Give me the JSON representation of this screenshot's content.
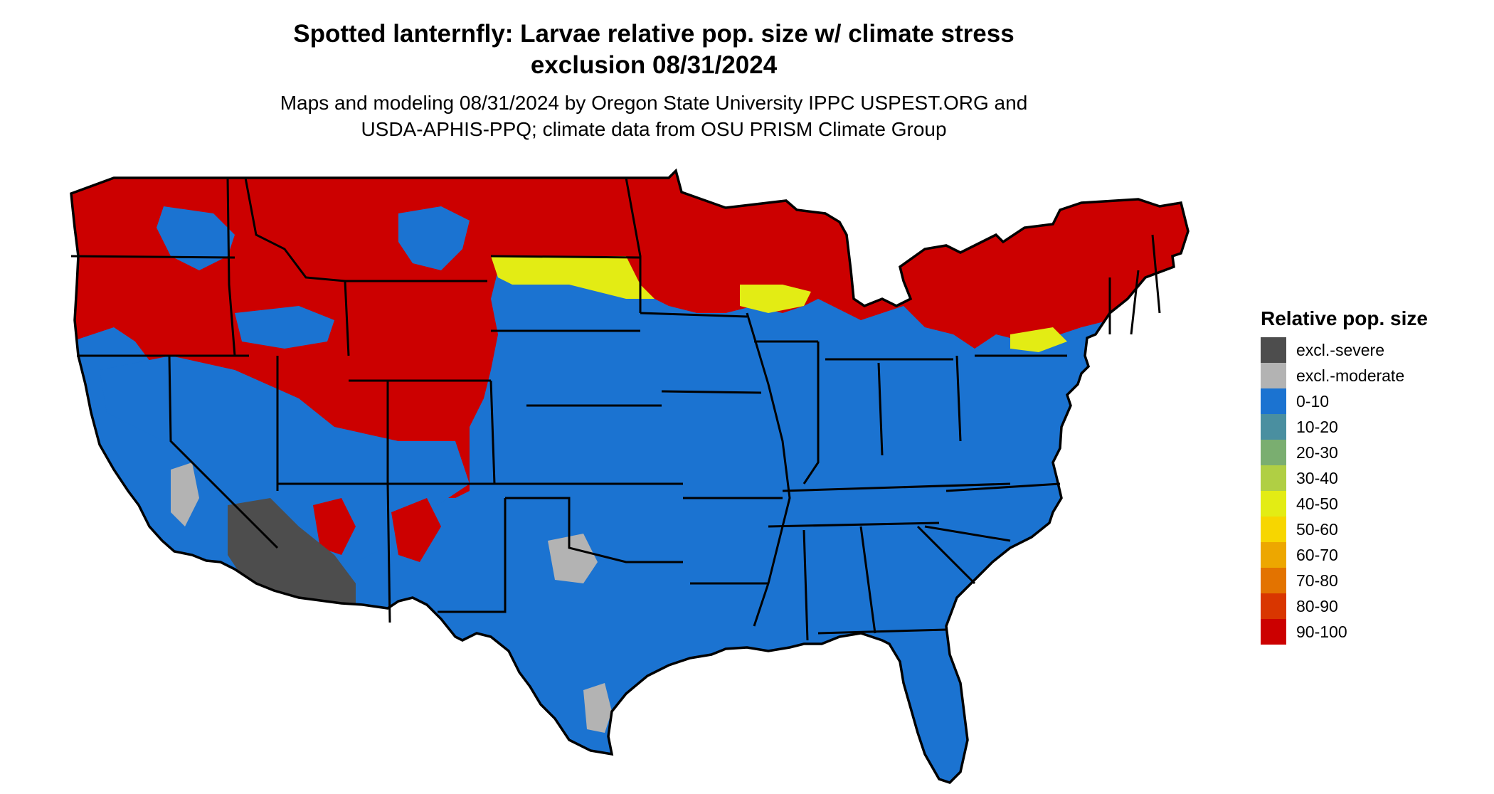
{
  "header": {
    "title_line1": "Spotted lanternfly: Larvae relative pop. size w/ climate stress",
    "title_line2": "exclusion 08/31/2024",
    "subtitle_line1": "Maps and modeling 08/31/2024 by Oregon State University IPPC USPEST.ORG and",
    "subtitle_line2": "USDA-APHIS-PPQ; climate data from OSU PRISM Climate Group"
  },
  "legend": {
    "title": "Relative pop. size",
    "items": [
      {
        "label": "excl.-severe",
        "color": "#4d4d4d"
      },
      {
        "label": "excl.-moderate",
        "color": "#b3b3b3"
      },
      {
        "label": "0-10",
        "color": "#1b73d1"
      },
      {
        "label": "10-20",
        "color": "#4a8fa0"
      },
      {
        "label": "20-30",
        "color": "#7aae70"
      },
      {
        "label": "30-40",
        "color": "#b0cf44"
      },
      {
        "label": "40-50",
        "color": "#e3ec14"
      },
      {
        "label": "50-60",
        "color": "#f7d600"
      },
      {
        "label": "60-70",
        "color": "#eda700"
      },
      {
        "label": "70-80",
        "color": "#e37300"
      },
      {
        "label": "80-90",
        "color": "#d93600"
      },
      {
        "label": "90-100",
        "color": "#cc0000"
      }
    ]
  },
  "colors": {
    "blue": "#1b73d1",
    "red": "#cc0000",
    "yellow": "#e3ec14",
    "orange": "#eda700",
    "dark_gray": "#4d4d4d",
    "light_gray": "#b3b3b3",
    "border": "#000000"
  }
}
